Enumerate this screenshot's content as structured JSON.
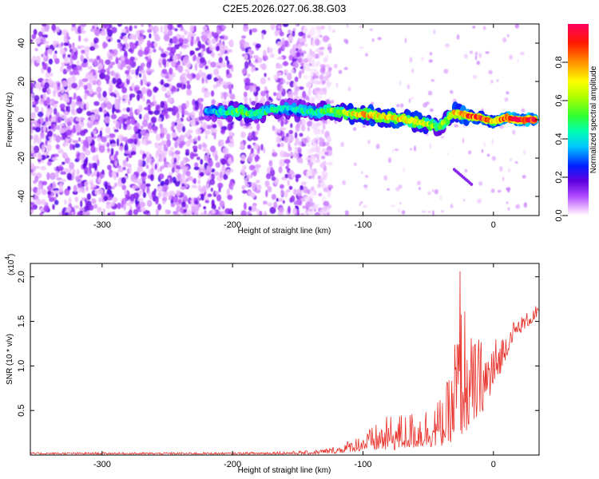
{
  "title": "C2E5.2026.027.06.38.G03",
  "chart_data": [
    {
      "type": "heatmap",
      "name": "spectrogram",
      "xlabel": "Height of straight line (km)",
      "ylabel": "Frequency (Hz)",
      "xlim": [
        -355,
        35
      ],
      "ylim": [
        -50,
        50
      ],
      "xticks": [
        -300,
        -200,
        -100,
        0
      ],
      "xtick_labels": [
        "-300",
        "-200",
        "-100",
        "0"
      ],
      "yticks": [
        -40,
        -20,
        0,
        20,
        40
      ],
      "ytick_labels": [
        "-40",
        "-20",
        "0",
        "20",
        "40"
      ],
      "colorbar": {
        "label": "Normalized spectral amplitude",
        "range": [
          0,
          1
        ],
        "ticks": [
          0.0,
          0.2,
          0.4,
          0.6,
          0.8
        ],
        "tick_labels": [
          "0.0",
          "0.2",
          "0.4",
          "0.6",
          "0.8"
        ]
      },
      "noise_region_x": [
        -355,
        -145
      ],
      "signal_track": [
        {
          "x": -220,
          "y": 5,
          "amp": 0.35
        },
        {
          "x": -205,
          "y": 4,
          "amp": 0.45
        },
        {
          "x": -195,
          "y": 5,
          "amp": 0.55
        },
        {
          "x": -185,
          "y": 3,
          "amp": 0.5
        },
        {
          "x": -160,
          "y": 6,
          "amp": 0.4
        },
        {
          "x": -135,
          "y": 4,
          "amp": 0.45
        },
        {
          "x": -125,
          "y": 5,
          "amp": 0.55
        },
        {
          "x": -110,
          "y": 3,
          "amp": 0.65
        },
        {
          "x": -100,
          "y": 3,
          "amp": 0.75
        },
        {
          "x": -90,
          "y": 2,
          "amp": 0.7
        },
        {
          "x": -75,
          "y": 1,
          "amp": 0.75
        },
        {
          "x": -60,
          "y": -1,
          "amp": 0.7
        },
        {
          "x": -50,
          "y": -2,
          "amp": 0.65
        },
        {
          "x": -42,
          "y": -4,
          "amp": 0.55
        },
        {
          "x": -30,
          "y": 4,
          "amp": 0.7
        },
        {
          "x": -20,
          "y": 2,
          "amp": 0.85
        },
        {
          "x": -10,
          "y": 1,
          "amp": 0.9
        },
        {
          "x": 0,
          "y": -1,
          "amp": 0.8
        },
        {
          "x": 10,
          "y": 1,
          "amp": 0.95
        },
        {
          "x": 20,
          "y": 0,
          "amp": 1.0
        },
        {
          "x": 32,
          "y": 0,
          "amp": 1.0
        }
      ]
    },
    {
      "type": "line",
      "name": "snr",
      "xlabel": "Height of straight line (km)",
      "ylabel": "SNR (10 * v/v)",
      "y_multiplier_label": "(x10",
      "y_multiplier_exp": "4",
      "y_multiplier_close": ")",
      "xlim": [
        -355,
        35
      ],
      "ylim": [
        0,
        2.15
      ],
      "xticks": [
        -300,
        -200,
        -100,
        0
      ],
      "xtick_labels": [
        "-300",
        "-200",
        "-100",
        "0"
      ],
      "yticks": [
        0.5,
        1.0,
        1.5,
        2.0
      ],
      "ytick_labels": [
        "0.5",
        "1.0",
        "1.5",
        "2.0"
      ],
      "series": [
        {
          "name": "SNR",
          "color": "#e8302a",
          "envelope": [
            {
              "x": -355,
              "low": 0.01,
              "high": 0.03
            },
            {
              "x": -200,
              "low": 0.01,
              "high": 0.03
            },
            {
              "x": -140,
              "low": 0.01,
              "high": 0.05
            },
            {
              "x": -120,
              "low": 0.02,
              "high": 0.1
            },
            {
              "x": -100,
              "low": 0.05,
              "high": 0.25
            },
            {
              "x": -80,
              "low": 0.05,
              "high": 0.45
            },
            {
              "x": -60,
              "low": 0.08,
              "high": 0.5
            },
            {
              "x": -40,
              "low": 0.1,
              "high": 0.65
            },
            {
              "x": -32,
              "low": 0.15,
              "high": 0.95
            },
            {
              "x": -26,
              "low": 0.2,
              "high": 2.1
            },
            {
              "x": -18,
              "low": 0.3,
              "high": 1.35
            },
            {
              "x": -5,
              "low": 0.55,
              "high": 1.3
            },
            {
              "x": 5,
              "low": 0.9,
              "high": 1.35
            },
            {
              "x": 15,
              "low": 1.3,
              "high": 1.5
            },
            {
              "x": 35,
              "low": 1.55,
              "high": 1.7
            }
          ]
        }
      ]
    }
  ]
}
